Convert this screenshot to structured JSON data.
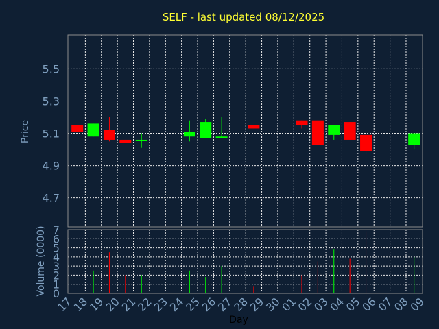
{
  "chart_data": {
    "type": "candlestick",
    "title": "SELF - last updated 08/12/2025",
    "ylabel_price": "Price",
    "ylabel_volume": "Volume (0000)",
    "xlabel": "Day",
    "price_ticks": [
      "4.7",
      "4.9",
      "5.1",
      "5.3",
      "5.5"
    ],
    "price_ylim": [
      4.52,
      5.71
    ],
    "volume_ticks": [
      "0",
      "1",
      "2",
      "3",
      "4",
      "5",
      "6",
      "7"
    ],
    "volume_ylim": [
      0,
      7
    ],
    "grid": true,
    "colors": {
      "up": "#00ff00",
      "down": "#ff0000",
      "background": "#0f1f33"
    },
    "x_tick_labels": [
      "17",
      "18",
      "19",
      "20",
      "21",
      "22",
      "23",
      "24",
      "25",
      "26",
      "27",
      "28",
      "29",
      "30",
      "01",
      "02",
      "03",
      "04",
      "05",
      "06",
      "07",
      "08",
      "09"
    ],
    "candles": [
      {
        "day": 0,
        "open": 5.15,
        "close": 5.11,
        "high": 5.15,
        "low": 5.11,
        "volume": 0
      },
      {
        "day": 1,
        "open": 5.08,
        "close": 5.16,
        "high": 5.16,
        "low": 5.08,
        "volume": 2.5
      },
      {
        "day": 2,
        "open": 5.12,
        "close": 5.06,
        "high": 5.2,
        "low": 5.05,
        "volume": 4.5
      },
      {
        "day": 3,
        "open": 5.06,
        "close": 5.04,
        "high": 5.06,
        "low": 5.04,
        "volume": 2.0
      },
      {
        "day": 4,
        "open": 5.06,
        "close": 5.06,
        "high": 5.1,
        "low": 5.01,
        "volume": 2.0
      },
      {
        "day": 7,
        "open": 5.08,
        "close": 5.11,
        "high": 5.18,
        "low": 5.05,
        "volume": 2.5
      },
      {
        "day": 8,
        "open": 5.07,
        "close": 5.17,
        "high": 5.19,
        "low": 5.07,
        "volume": 1.8
      },
      {
        "day": 9,
        "open": 5.07,
        "close": 5.08,
        "high": 5.2,
        "low": 5.07,
        "volume": 3.0
      },
      {
        "day": 11,
        "open": 5.15,
        "close": 5.13,
        "high": 5.15,
        "low": 5.13,
        "volume": 0.8
      },
      {
        "day": 14,
        "open": 5.18,
        "close": 5.15,
        "high": 5.18,
        "low": 5.13,
        "volume": 2.0
      },
      {
        "day": 15,
        "open": 5.18,
        "close": 5.03,
        "high": 5.18,
        "low": 5.03,
        "volume": 3.5
      },
      {
        "day": 16,
        "open": 5.09,
        "close": 5.15,
        "high": 5.15,
        "low": 5.06,
        "volume": 4.8
      },
      {
        "day": 17,
        "open": 5.17,
        "close": 5.06,
        "high": 5.17,
        "low": 5.06,
        "volume": 3.8
      },
      {
        "day": 18,
        "open": 5.09,
        "close": 4.99,
        "high": 5.09,
        "low": 4.97,
        "volume": 6.8
      },
      {
        "day": 21,
        "open": 5.03,
        "close": 5.1,
        "high": 5.1,
        "low": 5.0,
        "volume": 4.0
      }
    ]
  }
}
